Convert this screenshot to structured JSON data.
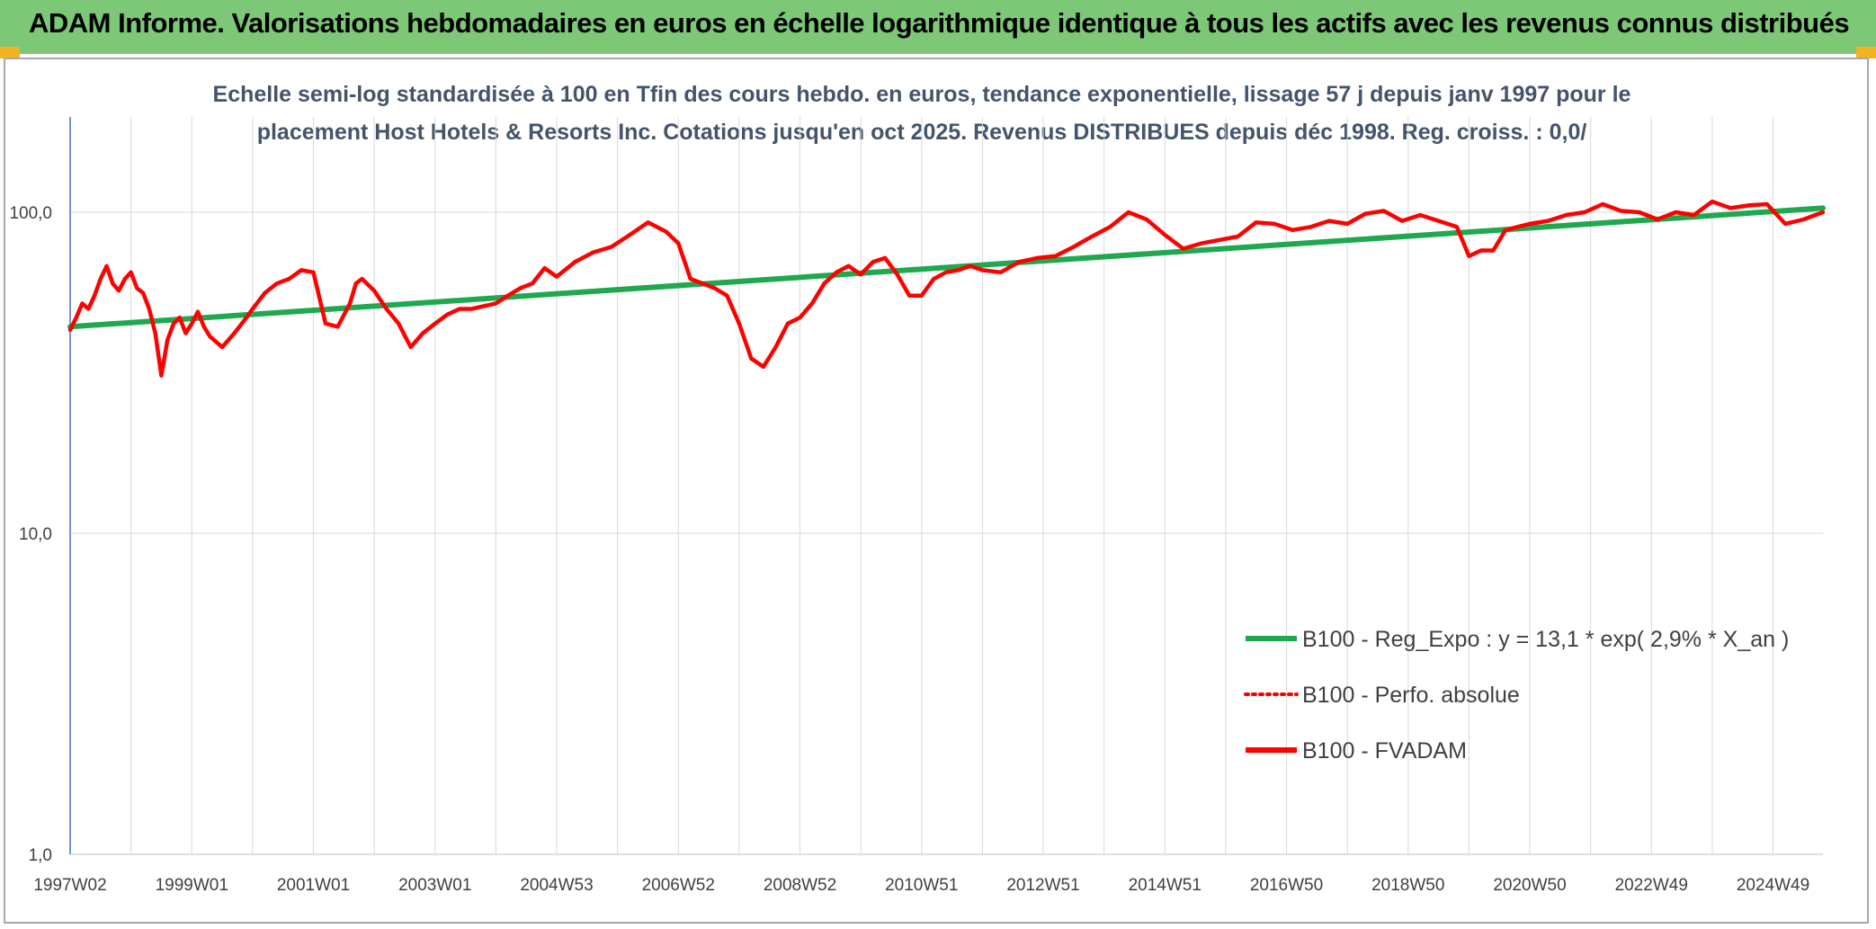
{
  "header": {
    "title": "ADAM Informe. Valorisations hebdomadaires en euros en échelle logarithmique identique à tous les actifs avec les revenus connus distribués",
    "bg_color": "#7dc877",
    "corner_color": "#f3b320"
  },
  "chart_data": {
    "type": "line",
    "title_line1": "Echelle semi-log standardisée à 100 en Tfin des cours hebdo. en euros, tendance exponentielle, lissage 57 j depuis janv 1997 pour le",
    "title_line2": "placement Host Hotels & Resorts Inc. Cotations jusqu'en oct 2025. Revenus DISTRIBUES depuis déc 1998. Reg. croiss. : 0,0/",
    "y_scale": "log",
    "ylim": [
      1,
      185
    ],
    "y_ticks": [
      {
        "value": 1,
        "label": "1,0"
      },
      {
        "value": 10,
        "label": "10,0"
      },
      {
        "value": 100,
        "label": "100,0"
      }
    ],
    "x_range": [
      1997.0,
      2025.82
    ],
    "x_ticks": [
      {
        "label": "1997W02",
        "year": 1997.0
      },
      {
        "label": "1999W01",
        "year": 1999.0
      },
      {
        "label": "2001W01",
        "year": 2001.0
      },
      {
        "label": "2003W01",
        "year": 2003.0
      },
      {
        "label": "2004W53",
        "year": 2005.0
      },
      {
        "label": "2006W52",
        "year": 2007.0
      },
      {
        "label": "2008W52",
        "year": 2009.0
      },
      {
        "label": "2010W51",
        "year": 2011.0
      },
      {
        "label": "2012W51",
        "year": 2013.0
      },
      {
        "label": "2014W51",
        "year": 2015.0
      },
      {
        "label": "2016W50",
        "year": 2017.0
      },
      {
        "label": "2018W50",
        "year": 2019.0
      },
      {
        "label": "2020W50",
        "year": 2021.0
      },
      {
        "label": "2022W49",
        "year": 2023.0
      },
      {
        "label": "2024W49",
        "year": 2025.0
      }
    ],
    "grid": "vertical",
    "legend_position": "right",
    "legend": [
      {
        "label": "B100 - Reg_Expo : y = 13,1 * exp( 2,9% * X_an )",
        "color": "#1fa84f",
        "style": "solid"
      },
      {
        "label": "B100 - Perfo. absolue",
        "color": "#ff0000",
        "style": "dotted"
      },
      {
        "label": "B100 - FVADAM",
        "color": "#ff0000",
        "style": "solid"
      }
    ],
    "series": [
      {
        "name": "B100 - Reg_Expo : y = 13,1 * exp( 2,9% * X_an )",
        "color": "#1fa84f",
        "x": [
          1997.0,
          2025.82
        ],
        "y": [
          44,
          103
        ]
      },
      {
        "name": "B100 - FVADAM",
        "color": "#ff0000",
        "x": [
          1997.0,
          1997.1,
          1997.2,
          1997.3,
          1997.4,
          1997.5,
          1997.6,
          1997.7,
          1997.8,
          1997.9,
          1998.0,
          1998.1,
          1998.2,
          1998.3,
          1998.4,
          1998.5,
          1998.6,
          1998.7,
          1998.8,
          1998.9,
          1999.0,
          1999.1,
          1999.2,
          1999.3,
          1999.5,
          1999.7,
          1999.9,
          2000.0,
          2000.2,
          2000.4,
          2000.6,
          2000.8,
          2001.0,
          2001.2,
          2001.4,
          2001.6,
          2001.7,
          2001.8,
          2002.0,
          2002.2,
          2002.4,
          2002.6,
          2002.8,
          2003.0,
          2003.2,
          2003.4,
          2003.6,
          2003.8,
          2004.0,
          2004.2,
          2004.4,
          2004.6,
          2004.8,
          2005.0,
          2005.3,
          2005.6,
          2005.9,
          2006.2,
          2006.5,
          2006.8,
          2007.0,
          2007.2,
          2007.4,
          2007.6,
          2007.8,
          2008.0,
          2008.2,
          2008.4,
          2008.6,
          2008.8,
          2009.0,
          2009.2,
          2009.4,
          2009.6,
          2009.8,
          2010.0,
          2010.2,
          2010.4,
          2010.6,
          2010.8,
          2011.0,
          2011.2,
          2011.4,
          2011.6,
          2011.8,
          2012.0,
          2012.3,
          2012.6,
          2012.9,
          2013.2,
          2013.5,
          2013.8,
          2014.1,
          2014.4,
          2014.7,
          2015.0,
          2015.3,
          2015.6,
          2015.9,
          2016.2,
          2016.5,
          2016.8,
          2017.1,
          2017.4,
          2017.7,
          2018.0,
          2018.3,
          2018.6,
          2018.9,
          2019.2,
          2019.5,
          2019.8,
          2020.0,
          2020.2,
          2020.4,
          2020.6,
          2020.8,
          2021.0,
          2021.3,
          2021.6,
          2021.9,
          2022.2,
          2022.5,
          2022.8,
          2023.1,
          2023.4,
          2023.7,
          2024.0,
          2024.3,
          2024.6,
          2024.9,
          2025.2,
          2025.5,
          2025.82
        ],
        "y": [
          43,
          47,
          52,
          50,
          55,
          62,
          68,
          60,
          57,
          62,
          65,
          58,
          56,
          50,
          42,
          31,
          40,
          45,
          47,
          42,
          45,
          49,
          44,
          41,
          38,
          42,
          47,
          50,
          56,
          60,
          62,
          66,
          65,
          45,
          44,
          52,
          60,
          62,
          57,
          50,
          45,
          38,
          42,
          45,
          48,
          50,
          50,
          51,
          52,
          55,
          58,
          60,
          67,
          63,
          70,
          75,
          78,
          85,
          93,
          87,
          80,
          62,
          60,
          58,
          55,
          45,
          35,
          33,
          38,
          45,
          47,
          52,
          60,
          65,
          68,
          64,
          70,
          72,
          64,
          55,
          55,
          62,
          65,
          66,
          68,
          66,
          65,
          70,
          72,
          73,
          78,
          84,
          90,
          100,
          95,
          85,
          77,
          80,
          82,
          84,
          93,
          92,
          88,
          90,
          94,
          92,
          99,
          101,
          94,
          98,
          94,
          90,
          73,
          76,
          76,
          88,
          90,
          92,
          94,
          98,
          100,
          106,
          101,
          100,
          95,
          100,
          98,
          108,
          103,
          105,
          106,
          92,
          95,
          100
        ]
      }
    ]
  }
}
